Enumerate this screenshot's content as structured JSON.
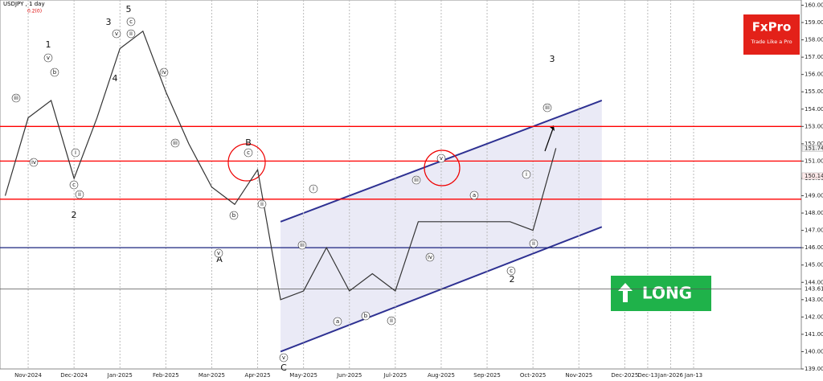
{
  "chart_data": {
    "type": "line",
    "title": "USDJPY , 1 day",
    "subtitle": "0.2(0)",
    "categories": [
      null,
      "Nov-2024",
      null,
      "Dec-2024",
      null,
      "Jan-2025",
      null,
      "Feb-2025",
      null,
      "Mar-2025",
      null,
      "Apr-2025",
      null,
      "May-2025",
      null,
      "Jun-2025",
      null,
      "Jul-2025",
      null,
      "Aug-2025",
      null,
      "Sep-2025",
      null,
      "Oct-2025",
      null,
      "Nov-2025",
      null,
      "Dec-2025",
      "Dec-13",
      "Jan-2026",
      "Jan-13"
    ],
    "series": [
      {
        "name": "USDJPY",
        "color": "#333333",
        "values": [
          149.0,
          153.5,
          154.5,
          150.0,
          153.5,
          157.5,
          158.5,
          155.0,
          152.0,
          149.5,
          148.5,
          150.5,
          143.0,
          143.5,
          146.0,
          143.5,
          144.5,
          143.5,
          147.5,
          147.5,
          147.5,
          147.5,
          147.5,
          147.0,
          151.744,
          null,
          null,
          null,
          null,
          null,
          null
        ]
      }
    ],
    "ylim": [
      139,
      160.3
    ],
    "yticks": [
      {
        "value": 139,
        "label": "139.000"
      },
      {
        "value": 140,
        "label": "140.000"
      },
      {
        "value": 141,
        "label": "141.000"
      },
      {
        "value": 142,
        "label": "142.000"
      },
      {
        "value": 143,
        "label": "143.000"
      },
      {
        "value": 144,
        "label": "144.000"
      },
      {
        "value": 145,
        "label": "145.000"
      },
      {
        "value": 146,
        "label": "146.000"
      },
      {
        "value": 147,
        "label": "147.000"
      },
      {
        "value": 148,
        "label": "148.000"
      },
      {
        "value": 149,
        "label": "149.000"
      },
      {
        "value": 150,
        "label": "150.000"
      },
      {
        "value": 151,
        "label": "151.000"
      },
      {
        "value": 152,
        "label": "152.000"
      },
      {
        "value": 153,
        "label": "153.000"
      },
      {
        "value": 154,
        "label": "154.000"
      },
      {
        "value": 155,
        "label": "155.000"
      },
      {
        "value": 156,
        "label": "156.000"
      },
      {
        "value": 157,
        "label": "157.000"
      },
      {
        "value": 158,
        "label": "158.000"
      },
      {
        "value": 159,
        "label": "159.000"
      },
      {
        "value": 160,
        "label": "160.000"
      }
    ],
    "levels": [
      {
        "value": 153.0,
        "color": "#ff0000"
      },
      {
        "value": 151.0,
        "color": "#ff0000"
      },
      {
        "value": 148.8,
        "color": "#ff0000"
      },
      {
        "value": 146.0,
        "color": "#1a237e"
      },
      {
        "value": 143.618,
        "color": "#555555",
        "label": "143.618"
      }
    ],
    "price_labels": [
      {
        "value": 151.744,
        "label": "151.744"
      },
      {
        "value": 150.14,
        "label": "150.140"
      }
    ],
    "channel": {
      "upper": [
        147.5,
        154.5
      ],
      "lower": [
        140.0,
        147.2
      ],
      "color": "#2e3192"
    },
    "waves": [
      "1",
      "2",
      "3",
      "4",
      "5",
      "B",
      "A",
      "C",
      "2",
      "3"
    ],
    "sub_waves": [
      "v",
      "b",
      "iii",
      "iv",
      "c",
      "ii",
      "i",
      "v",
      "c",
      "ii",
      "iv",
      "iii",
      "v",
      "c",
      "b",
      "ii",
      "i",
      "iii",
      "v",
      "a",
      "b",
      "ii",
      "iii",
      "iv",
      "v",
      "i",
      "ii",
      "iii",
      "c",
      "a"
    ],
    "grid": true
  },
  "logo": {
    "brand": "FxPro",
    "tagline": "Trade Like a Pro"
  },
  "signal": "LONG"
}
